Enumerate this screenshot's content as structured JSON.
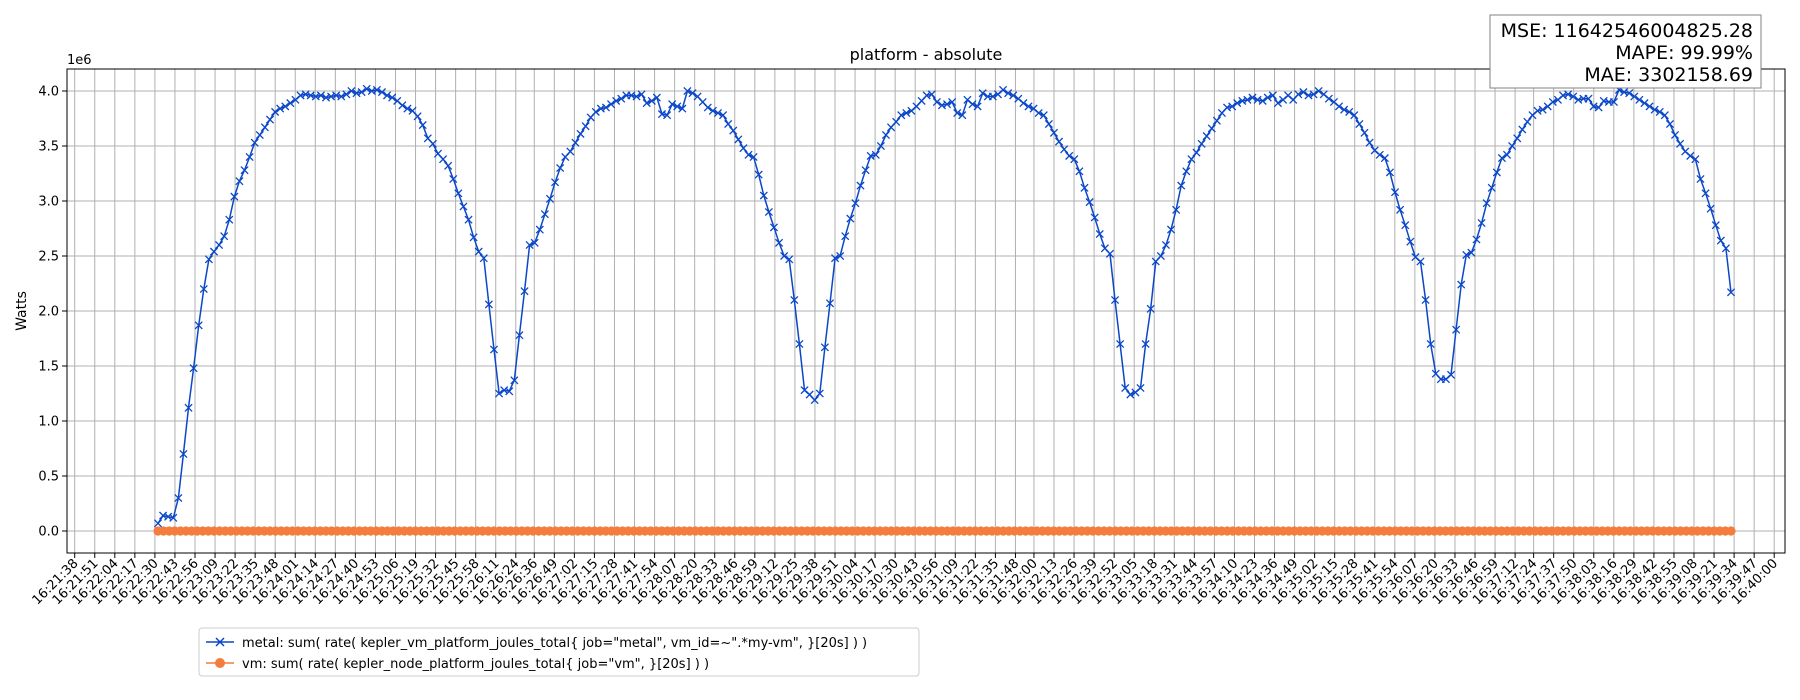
{
  "chart_data": {
    "type": "line",
    "title": "platform - absolute",
    "ylabel": "Watts",
    "xlabel": "",
    "y_offset_label": "1e6",
    "y_scale": 1000000,
    "ylim": [
      -0.2,
      4.2
    ],
    "yticks": [
      0.0,
      0.5,
      1.0,
      1.5,
      2.0,
      2.5,
      3.0,
      3.5,
      4.0
    ],
    "ytick_labels": [
      "0.0",
      "0.5",
      "1.0",
      "1.5",
      "2.0",
      "2.5",
      "3.0",
      "3.5",
      "4.0"
    ],
    "xlim": [
      "16:21:33",
      "16:40:07"
    ],
    "xtick_labels": [
      "16:21:38",
      "16:21:51",
      "16:22:04",
      "16:22:17",
      "16:22:30",
      "16:22:43",
      "16:22:56",
      "16:23:09",
      "16:23:22",
      "16:23:35",
      "16:23:48",
      "16:24:01",
      "16:24:14",
      "16:24:27",
      "16:24:40",
      "16:24:53",
      "16:25:06",
      "16:25:19",
      "16:25:32",
      "16:25:45",
      "16:25:58",
      "16:26:11",
      "16:26:24",
      "16:26:36",
      "16:26:49",
      "16:27:02",
      "16:27:15",
      "16:27:28",
      "16:27:41",
      "16:27:54",
      "16:28:07",
      "16:28:20",
      "16:28:33",
      "16:28:46",
      "16:28:59",
      "16:29:12",
      "16:29:25",
      "16:29:38",
      "16:29:51",
      "16:30:04",
      "16:30:17",
      "16:30:30",
      "16:30:43",
      "16:30:56",
      "16:31:09",
      "16:31:22",
      "16:31:35",
      "16:31:48",
      "16:32:00",
      "16:32:13",
      "16:32:26",
      "16:32:39",
      "16:32:52",
      "16:33:05",
      "16:33:18",
      "16:33:31",
      "16:33:44",
      "16:33:57",
      "16:34:10",
      "16:34:23",
      "16:34:36",
      "16:34:49",
      "16:35:02",
      "16:35:15",
      "16:35:28",
      "16:35:41",
      "16:35:54",
      "16:36:07",
      "16:36:20",
      "16:36:33",
      "16:36:46",
      "16:36:59",
      "16:37:12",
      "16:37:24",
      "16:37:37",
      "16:37:50",
      "16:38:03",
      "16:38:16",
      "16:38:29",
      "16:38:42",
      "16:38:55",
      "16:39:08",
      "16:39:21",
      "16:39:34",
      "16:39:47",
      "16:40:00"
    ],
    "grid": true,
    "legend_position": "bottom-left, below axes",
    "series": [
      {
        "name": "metal: sum( rate( kepler_vm_platform_joules_total{ job=\"metal\", vm_id=~\".*my-vm\", }[20s] ) )",
        "color": "#0a47c9",
        "marker": "x",
        "x_start": "16:22:32",
        "x_end": "16:39:32",
        "values": [
          0.07,
          0.14,
          0.13,
          0.12,
          0.3,
          0.7,
          1.12,
          1.48,
          1.87,
          2.2,
          2.47,
          2.54,
          2.6,
          2.68,
          2.83,
          3.04,
          3.18,
          3.28,
          3.4,
          3.53,
          3.6,
          3.67,
          3.74,
          3.81,
          3.84,
          3.86,
          3.89,
          3.92,
          3.96,
          3.97,
          3.96,
          3.95,
          3.96,
          3.94,
          3.95,
          3.96,
          3.95,
          3.97,
          4.0,
          3.98,
          3.99,
          4.02,
          4.0,
          4.01,
          3.99,
          3.96,
          3.94,
          3.91,
          3.87,
          3.84,
          3.82,
          3.77,
          3.69,
          3.57,
          3.52,
          3.43,
          3.38,
          3.32,
          3.2,
          3.07,
          2.95,
          2.83,
          2.67,
          2.54,
          2.48,
          2.06,
          1.65,
          1.25,
          1.28,
          1.27,
          1.37,
          1.78,
          2.18,
          2.6,
          2.62,
          2.74,
          2.88,
          3.02,
          3.17,
          3.3,
          3.4,
          3.45,
          3.53,
          3.61,
          3.68,
          3.76,
          3.81,
          3.84,
          3.85,
          3.88,
          3.91,
          3.93,
          3.96,
          3.96,
          3.95,
          3.97,
          3.89,
          3.91,
          3.94,
          3.79,
          3.78,
          3.88,
          3.86,
          3.84,
          4.0,
          3.98,
          3.95,
          3.9,
          3.85,
          3.82,
          3.8,
          3.78,
          3.7,
          3.64,
          3.56,
          3.48,
          3.42,
          3.4,
          3.24,
          3.05,
          2.9,
          2.76,
          2.62,
          2.5,
          2.47,
          2.1,
          1.7,
          1.28,
          1.24,
          1.19,
          1.25,
          1.67,
          2.07,
          2.48,
          2.5,
          2.68,
          2.84,
          2.98,
          3.14,
          3.28,
          3.41,
          3.42,
          3.5,
          3.6,
          3.67,
          3.72,
          3.78,
          3.8,
          3.82,
          3.86,
          3.91,
          3.96,
          3.97,
          3.9,
          3.87,
          3.88,
          3.9,
          3.8,
          3.78,
          3.92,
          3.88,
          3.86,
          3.98,
          3.95,
          3.95,
          3.97,
          4.01,
          3.98,
          3.96,
          3.93,
          3.89,
          3.86,
          3.84,
          3.8,
          3.78,
          3.7,
          3.62,
          3.54,
          3.47,
          3.41,
          3.38,
          3.27,
          3.12,
          2.99,
          2.85,
          2.7,
          2.57,
          2.52,
          2.1,
          1.7,
          1.3,
          1.24,
          1.26,
          1.3,
          1.7,
          2.02,
          2.45,
          2.5,
          2.6,
          2.74,
          2.92,
          3.14,
          3.27,
          3.38,
          3.44,
          3.52,
          3.59,
          3.66,
          3.73,
          3.8,
          3.85,
          3.86,
          3.89,
          3.91,
          3.92,
          3.94,
          3.92,
          3.91,
          3.94,
          3.96,
          3.89,
          3.92,
          3.96,
          3.92,
          3.97,
          3.99,
          3.96,
          3.97,
          4.0,
          3.97,
          3.93,
          3.9,
          3.86,
          3.83,
          3.81,
          3.78,
          3.7,
          3.62,
          3.53,
          3.46,
          3.42,
          3.39,
          3.26,
          3.08,
          2.92,
          2.78,
          2.63,
          2.49,
          2.45,
          2.1,
          1.7,
          1.43,
          1.38,
          1.38,
          1.42,
          1.83,
          2.24,
          2.51,
          2.53,
          2.65,
          2.8,
          2.98,
          3.12,
          3.26,
          3.39,
          3.42,
          3.5,
          3.57,
          3.65,
          3.72,
          3.78,
          3.82,
          3.83,
          3.86,
          3.9,
          3.92,
          3.96,
          3.97,
          3.95,
          3.92,
          3.93,
          3.93,
          3.86,
          3.85,
          3.91,
          3.9,
          3.9,
          4.01,
          3.99,
          3.98,
          3.95,
          3.92,
          3.89,
          3.86,
          3.83,
          3.81,
          3.78,
          3.7,
          3.6,
          3.52,
          3.45,
          3.41,
          3.38,
          3.2,
          3.07,
          2.93,
          2.78,
          2.64,
          2.57,
          2.17
        ]
      },
      {
        "name": "vm: sum( rate( kepler_node_platform_joules_total{ job=\"vm\", }[20s] ) )",
        "color": "#f47c3c",
        "marker": "o",
        "x_start": "16:22:32",
        "x_end": "16:39:32",
        "constant_value": 0.0,
        "n_points": 282
      }
    ],
    "annotations": {
      "mse_label": "MSE: 11642546004825.28",
      "mape_label": "MAPE: 99.99%",
      "mae_label": "MAE: 3302158.69",
      "placement": "top-right"
    }
  }
}
